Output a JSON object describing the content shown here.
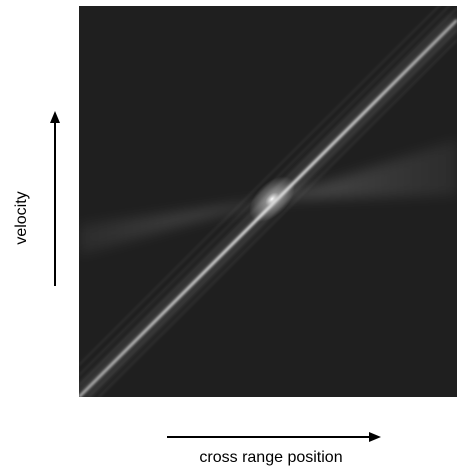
{
  "x_label": "cross range position",
  "y_label": "velocity"
}
